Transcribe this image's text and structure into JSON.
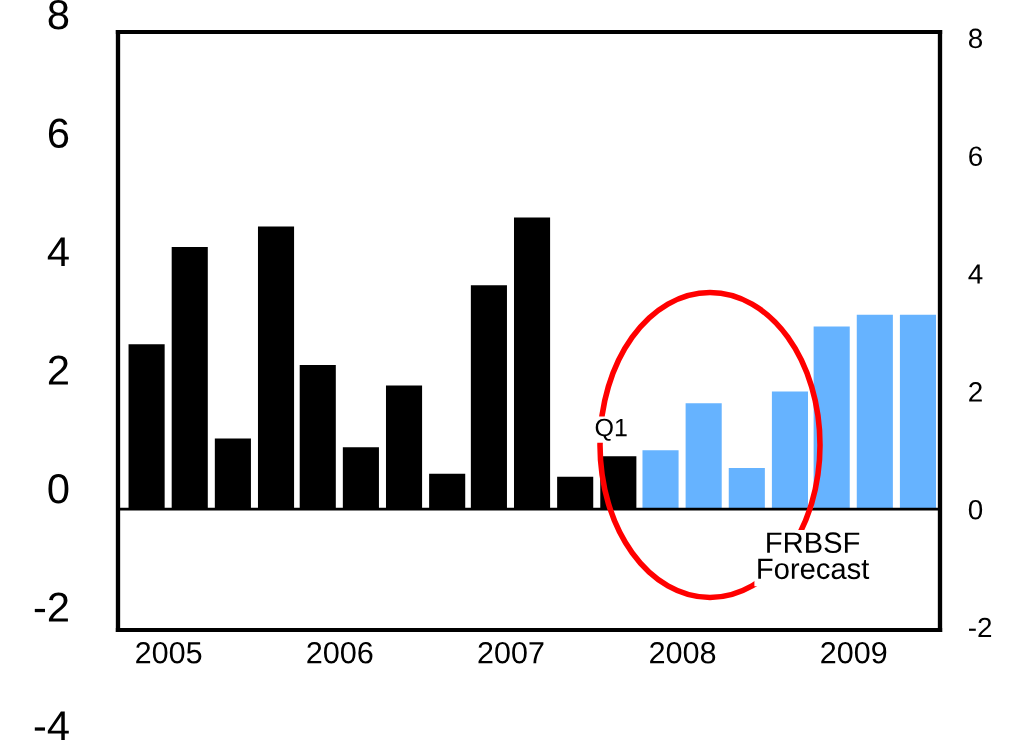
{
  "chart_data": {
    "type": "bar",
    "x": [
      "2005-05-15",
      "2005-08-15",
      "2005-11-15",
      "2006-02-15",
      "2006-05-15",
      "2006-08-15",
      "2006-11-15",
      "2007-02-15",
      "2007-05-15",
      "2007-08-15",
      "2007-11-15",
      "2008-02-15",
      "2008-05-15",
      "2008-08-15",
      "2008-11-15",
      "2009-02-15",
      "2009-05-15",
      "2009-08-15",
      "2009-11-15"
    ],
    "series": [
      {
        "axis": "y2",
        "values": [
          2.8,
          4.45,
          1.2,
          4.8,
          2.45,
          1.05,
          2.1,
          0.6,
          3.8,
          4.95,
          0.55,
          0.9,
          1.0,
          1.8,
          0.7,
          2.0,
          3.1,
          3.3,
          3.3
        ],
        "colors": [
          "#000000",
          "#000000",
          "#000000",
          "#000000",
          "#000000",
          "#000000",
          "#000000",
          "#000000",
          "#000000",
          "#000000",
          "#000000",
          "#000000",
          "#66b3ff",
          "#66b3ff",
          "#66b3ff",
          "#66b3ff",
          "#66b3ff",
          "#66b3ff",
          "#66b3ff"
        ]
      }
    ],
    "xlim": [
      "2005-03-15",
      "2010-01-01"
    ],
    "xticks": [
      {
        "value": "2005-07-01",
        "label": "2005"
      },
      {
        "value": "2006-07-01",
        "label": "2006"
      },
      {
        "value": "2007-07-01",
        "label": "2007"
      },
      {
        "value": "2008-07-01",
        "label": "2008"
      },
      {
        "value": "2009-07-01",
        "label": "2009"
      }
    ],
    "ylim": [
      -4,
      8
    ],
    "yticks": [
      -4,
      -2,
      0,
      2,
      4,
      6,
      8
    ],
    "y2lim": [
      -2.05,
      8.1
    ],
    "y2ticks": [
      -2,
      0,
      2,
      4,
      6,
      8
    ],
    "ref_lines": [
      {
        "axis": "y2",
        "value": 0,
        "color": "#000000"
      }
    ],
    "annotations": [
      "Q1",
      "FRBSF\nForecast"
    ],
    "grid": false,
    "legend": false
  }
}
